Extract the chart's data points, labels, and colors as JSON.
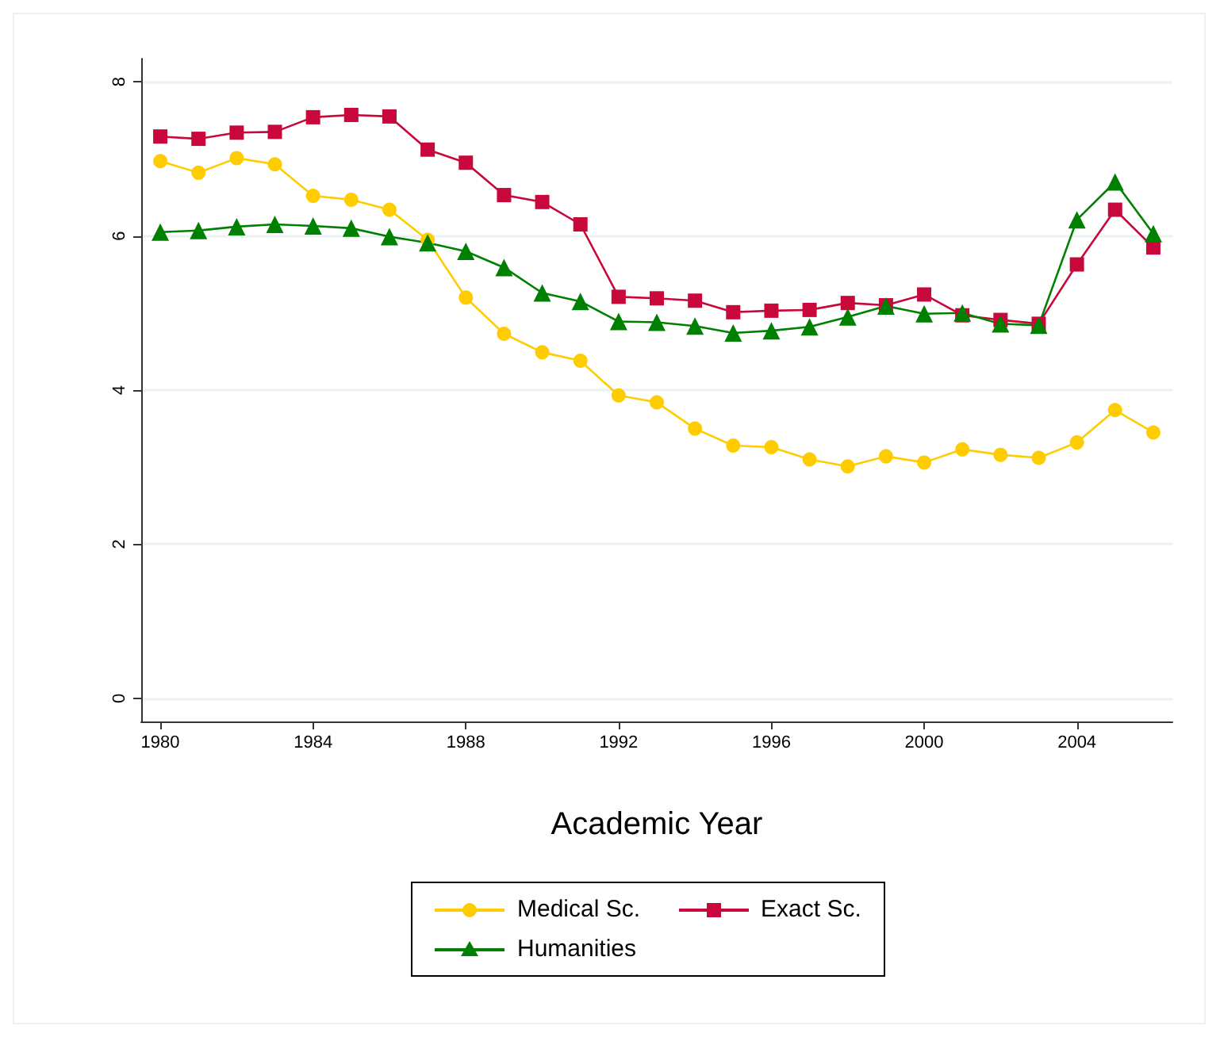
{
  "chart_data": {
    "type": "line",
    "xlabel": "Academic Year",
    "x": [
      1980,
      1981,
      1982,
      1983,
      1984,
      1985,
      1986,
      1987,
      1988,
      1989,
      1990,
      1991,
      1992,
      1993,
      1994,
      1995,
      1996,
      1997,
      1998,
      1999,
      2000,
      2001,
      2002,
      2003,
      2004,
      2005,
      2006
    ],
    "series": [
      {
        "name": "Medical Sc.",
        "color": "#ffcc00",
        "marker": "circle",
        "values": [
          6.97,
          6.82,
          7.01,
          6.93,
          6.52,
          6.47,
          6.34,
          5.95,
          5.2,
          4.73,
          4.49,
          4.38,
          3.93,
          3.84,
          3.5,
          3.28,
          3.26,
          3.1,
          3.01,
          3.14,
          3.06,
          3.23,
          3.16,
          3.12,
          3.32,
          3.74,
          3.45
        ]
      },
      {
        "name": "Exact Sc.",
        "color": "#c8083a",
        "marker": "square",
        "values": [
          7.29,
          7.26,
          7.34,
          7.35,
          7.54,
          7.57,
          7.55,
          7.12,
          6.95,
          6.53,
          6.44,
          6.15,
          5.21,
          5.19,
          5.16,
          5.01,
          5.03,
          5.04,
          5.13,
          5.1,
          5.24,
          4.97,
          4.91,
          4.86,
          5.63,
          6.34,
          5.85
        ]
      },
      {
        "name": "Humanities",
        "color": "#008000",
        "marker": "triangle",
        "values": [
          6.05,
          6.07,
          6.12,
          6.15,
          6.13,
          6.1,
          5.99,
          5.91,
          5.8,
          5.59,
          5.26,
          5.15,
          4.89,
          4.88,
          4.83,
          4.74,
          4.77,
          4.82,
          4.95,
          5.09,
          4.99,
          5.0,
          4.86,
          4.84,
          6.21,
          6.7,
          6.03
        ]
      }
    ],
    "xlim": [
      1979.5,
      2006.5
    ],
    "xticks": [
      1980,
      1984,
      1988,
      1992,
      1996,
      2000,
      2004
    ],
    "ylim": [
      -0.3,
      8.3
    ],
    "yticks": [
      0,
      2,
      4,
      6,
      8
    ],
    "grid": "y",
    "legend": "bottom",
    "line_style": "solid"
  }
}
